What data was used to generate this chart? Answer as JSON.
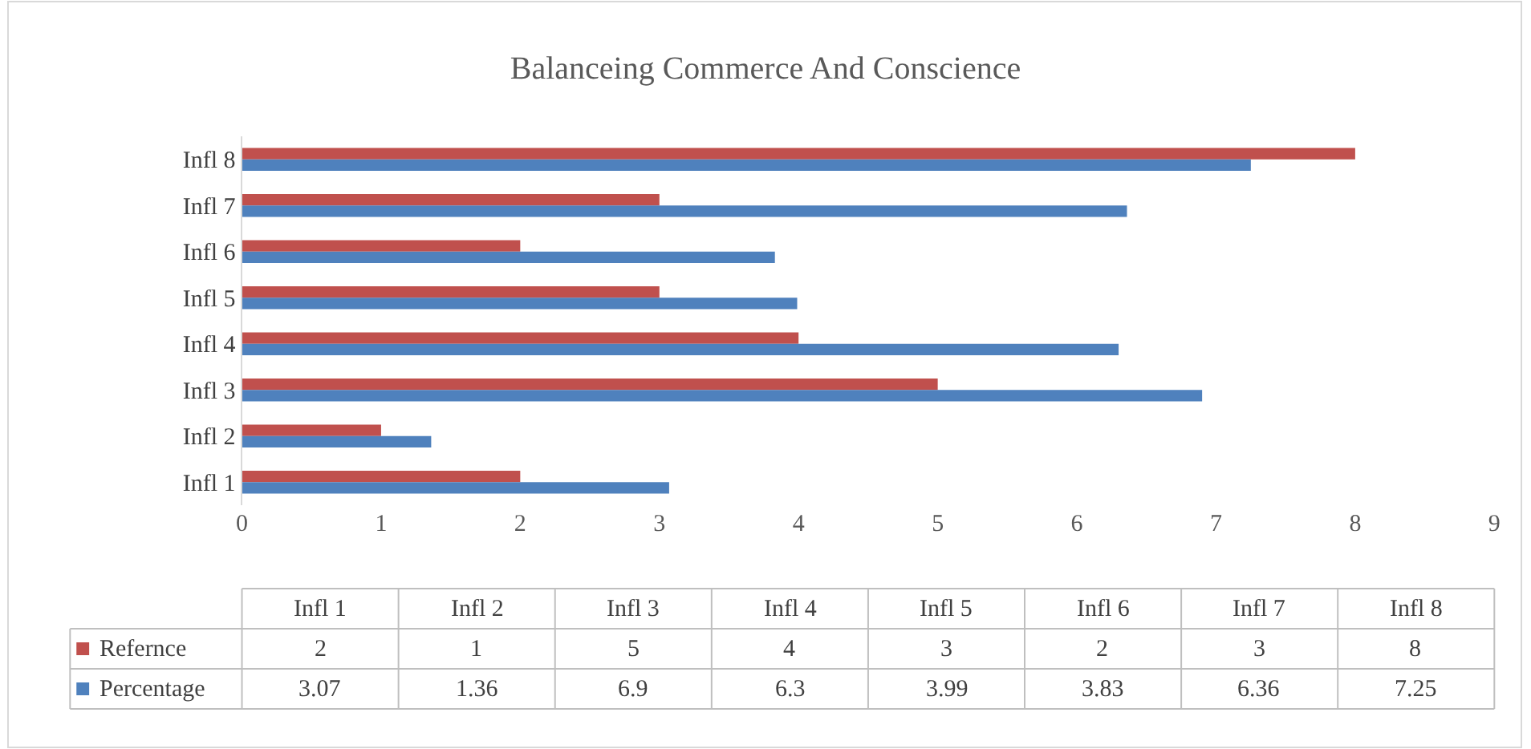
{
  "chart_data": [
    {
      "type": "bar",
      "orientation": "horizontal",
      "title": "Balanceing Commerce And Conscience",
      "categories": [
        "Infl 8",
        "Infl 7",
        "Infl 6",
        "Infl 5",
        "Infl 4",
        "Infl 3",
        "Infl 2",
        "Infl 1"
      ],
      "series": [
        {
          "name": "Refernce",
          "color": "#c0504d",
          "values": [
            8,
            3,
            2,
            3,
            4,
            5,
            1,
            2
          ]
        },
        {
          "name": "Percentage",
          "color": "#4f81bd",
          "values": [
            7.25,
            6.36,
            3.83,
            3.99,
            6.3,
            6.9,
            1.36,
            3.07
          ]
        }
      ],
      "xlim": [
        0,
        9
      ],
      "xticks": [
        0,
        1,
        2,
        3,
        4,
        5,
        6,
        7,
        8,
        9
      ],
      "grid": false,
      "legend": "bottom"
    },
    {
      "type": "other",
      "categories": [
        "Infl 1",
        "Infl 2",
        "Infl 3",
        "Infl 4",
        "Infl 5",
        "Infl 6",
        "Infl 7",
        "Infl 8"
      ],
      "series": [
        {
          "values": [
            2,
            1,
            5,
            4,
            3,
            2,
            3,
            8
          ]
        },
        {
          "values": [
            3.07,
            1.36,
            6.9,
            6.3,
            3.99,
            3.83,
            6.36,
            7.25
          ]
        }
      ],
      "data_labels": true
    }
  ]
}
